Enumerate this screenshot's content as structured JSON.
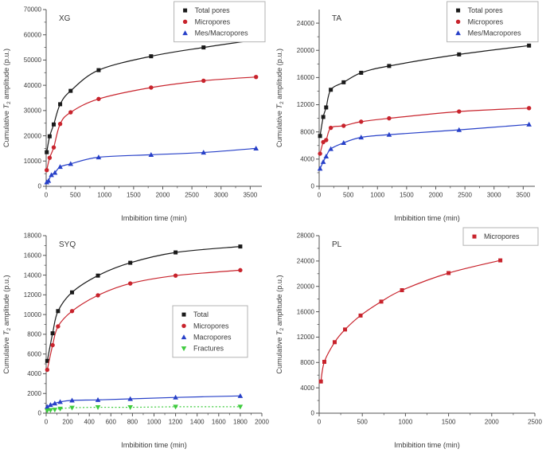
{
  "figure": {
    "background": "#ffffff"
  },
  "colors": {
    "black": "#1a1a1a",
    "red": "#c8232c",
    "blue": "#2740c8",
    "green": "#3ecb3e",
    "axis": "#555555",
    "text": "#3a3a3a",
    "legend_border": "#b3b3b3",
    "legend_fill": "#ffffff"
  },
  "chart_data": [
    {
      "id": "xg",
      "type": "scatter",
      "title": "XG",
      "xlabel": "Imbibition time (min)",
      "ylabel": "Cumulative T2 amplitude (p.u.)",
      "xlim": [
        0,
        3700
      ],
      "ylim": [
        0,
        70000
      ],
      "xticks": [
        0,
        500,
        1000,
        1500,
        2000,
        2500,
        3000,
        3500
      ],
      "yticks": [
        0,
        10000,
        20000,
        30000,
        40000,
        50000,
        60000,
        70000
      ],
      "grid": false,
      "legend_pos": "top-right",
      "series": [
        {
          "name": "Total pores",
          "color": "black",
          "marker": "square",
          "line_style": "solid",
          "x": [
            10,
            60,
            130,
            240,
            420,
            900,
            1800,
            2700,
            3600
          ],
          "y": [
            13500,
            19800,
            24500,
            32500,
            37800,
            46000,
            51500,
            55000,
            58000
          ]
        },
        {
          "name": "Micropores",
          "color": "red",
          "marker": "circle",
          "line_style": "solid",
          "x": [
            10,
            60,
            130,
            240,
            420,
            900,
            1800,
            2700,
            3600
          ],
          "y": [
            6400,
            11300,
            15400,
            24700,
            29300,
            34600,
            39100,
            41800,
            43300
          ]
        },
        {
          "name": "Mes/Macropores",
          "color": "blue",
          "marker": "triangle-up",
          "line_style": "solid",
          "x": [
            10,
            40,
            90,
            150,
            240,
            420,
            900,
            1800,
            2700,
            3600
          ],
          "y": [
            1600,
            2200,
            4500,
            5400,
            7700,
            8900,
            11500,
            12500,
            13400,
            15000
          ]
        }
      ]
    },
    {
      "id": "ta",
      "type": "scatter",
      "title": "TA",
      "xlabel": "Imbibition time (min)",
      "ylabel": "Cumulative T2 amplitude (p.u.)",
      "xlim": [
        0,
        3700
      ],
      "ylim": [
        0,
        26000
      ],
      "xticks": [
        0,
        500,
        1000,
        1500,
        2000,
        2500,
        3000,
        3500
      ],
      "yticks": [
        0,
        4000,
        8000,
        12000,
        16000,
        20000,
        24000
      ],
      "grid": false,
      "legend_pos": "top-right",
      "series": [
        {
          "name": "Total pores",
          "color": "black",
          "marker": "square",
          "line_style": "solid",
          "x": [
            15,
            70,
            120,
            200,
            420,
            720,
            1200,
            2400,
            3600
          ],
          "y": [
            7400,
            10200,
            11600,
            14200,
            15300,
            16700,
            17700,
            19400,
            20700
          ]
        },
        {
          "name": "Micropores",
          "color": "red",
          "marker": "circle",
          "line_style": "solid",
          "x": [
            15,
            70,
            120,
            200,
            420,
            720,
            1200,
            2400,
            3600
          ],
          "y": [
            4800,
            6500,
            6800,
            8600,
            8900,
            9500,
            10000,
            11000,
            11500
          ]
        },
        {
          "name": "Mes/Macropores",
          "color": "blue",
          "marker": "triangle-up",
          "line_style": "solid",
          "x": [
            15,
            70,
            120,
            200,
            420,
            720,
            1200,
            2400,
            3600
          ],
          "y": [
            2600,
            3600,
            4400,
            5500,
            6400,
            7200,
            7600,
            8300,
            9100
          ]
        }
      ]
    },
    {
      "id": "syq",
      "type": "scatter",
      "title": "SYQ",
      "xlabel": "Imbibition time (min)",
      "ylabel": "Cumulative T2 amplitude (p.u.)",
      "xlim": [
        0,
        2000
      ],
      "ylim": [
        0,
        18000
      ],
      "xticks": [
        0,
        200,
        400,
        600,
        800,
        1000,
        1200,
        1400,
        1600,
        1800,
        2000
      ],
      "yticks": [
        0,
        2000,
        4000,
        6000,
        8000,
        10000,
        12000,
        14000,
        16000,
        18000
      ],
      "grid": false,
      "legend_pos": "right-middle",
      "series": [
        {
          "name": "Total",
          "color": "black",
          "marker": "square",
          "line_style": "solid",
          "x": [
            10,
            60,
            110,
            240,
            480,
            780,
            1200,
            1800
          ],
          "y": [
            5300,
            8100,
            10350,
            12250,
            13950,
            15250,
            16300,
            16900
          ]
        },
        {
          "name": "Micropores",
          "color": "red",
          "marker": "circle",
          "line_style": "solid",
          "x": [
            10,
            60,
            110,
            240,
            480,
            780,
            1200,
            1800
          ],
          "y": [
            4400,
            6900,
            8800,
            10350,
            11950,
            13150,
            13950,
            14500
          ]
        },
        {
          "name": "Macropores",
          "color": "blue",
          "marker": "triangle-up",
          "line_style": "solid",
          "x": [
            10,
            40,
            80,
            130,
            240,
            480,
            780,
            1200,
            1800
          ],
          "y": [
            650,
            850,
            1000,
            1150,
            1300,
            1350,
            1450,
            1600,
            1750
          ]
        },
        {
          "name": "Fractures",
          "color": "green",
          "marker": "triangle-down",
          "line_style": "dotted",
          "x": [
            10,
            40,
            80,
            130,
            240,
            480,
            780,
            1200,
            1800
          ],
          "y": [
            250,
            300,
            350,
            450,
            550,
            600,
            600,
            650,
            650
          ]
        }
      ]
    },
    {
      "id": "pl",
      "type": "scatter",
      "title": "PL",
      "xlabel": "Imbibition time (min)",
      "ylabel": "Cumulative T2 amplitude (p.u.)",
      "xlim": [
        0,
        2500
      ],
      "ylim": [
        0,
        28000
      ],
      "xticks": [
        0,
        500,
        1000,
        1500,
        2000,
        2500
      ],
      "yticks": [
        0,
        4000,
        8000,
        12000,
        16000,
        20000,
        24000,
        28000
      ],
      "grid": false,
      "legend_pos": "top-right",
      "series": [
        {
          "name": "Micropores",
          "color": "red",
          "marker": "square",
          "line_style": "solid",
          "x": [
            20,
            60,
            180,
            300,
            480,
            720,
            960,
            1500,
            2100
          ],
          "y": [
            5000,
            8100,
            11200,
            13200,
            15400,
            17600,
            19400,
            22100,
            24100
          ]
        }
      ]
    }
  ]
}
